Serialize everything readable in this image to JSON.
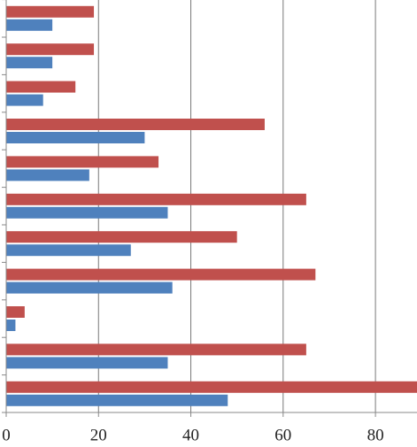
{
  "chart_data": {
    "type": "hbar",
    "categories": [
      null,
      null,
      null,
      null,
      null,
      null,
      null,
      null,
      null,
      null,
      null
    ],
    "series": [
      {
        "color": "#c0504d",
        "values": [
          19,
          19,
          15,
          56,
          33,
          65,
          50,
          67,
          4,
          65,
          90
        ]
      },
      {
        "color": "#4f81bd",
        "values": [
          10,
          10,
          8,
          30,
          18,
          35,
          27,
          36,
          2,
          35,
          48
        ]
      }
    ],
    "xlim": [
      0,
      89
    ],
    "xticks": [
      0,
      20,
      40,
      60,
      80
    ],
    "grid": true
  }
}
